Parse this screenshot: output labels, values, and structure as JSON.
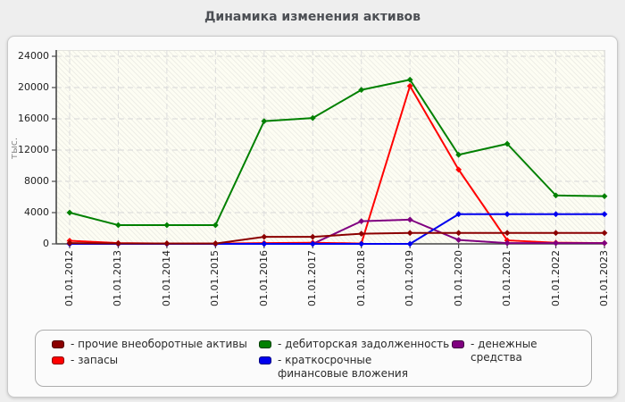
{
  "page": {
    "title": "Динамика изменения активов"
  },
  "chart_data": {
    "type": "line",
    "title": "Динамика изменения активов",
    "ylabel": "тыс.",
    "xlabel": "",
    "x_categories": [
      "01.01.2012",
      "01.01.2013",
      "01.01.2014",
      "01.01.2015",
      "01.01.2016",
      "01.01.2017",
      "01.01.2018",
      "01.01.2019",
      "01.01.2020",
      "01.01.2021",
      "01.01.2022",
      "01.01.2023"
    ],
    "y_ticks": [
      0,
      4000,
      8000,
      12000,
      16000,
      20000,
      24000
    ],
    "ylim": [
      0,
      24000
    ],
    "grid": true,
    "legend_position": "bottom",
    "series": [
      {
        "name": "прочие внеоборотные активы",
        "color": "#8b0000",
        "values": [
          100,
          50,
          50,
          50,
          900,
          900,
          1300,
          1400,
          1400,
          1400,
          1400,
          1400
        ]
      },
      {
        "name": "запасы",
        "color": "#ff0000",
        "values": [
          400,
          100,
          50,
          50,
          100,
          150,
          50,
          20200,
          9500,
          450,
          150,
          100
        ]
      },
      {
        "name": "дебиторская задолженность",
        "color": "#008000",
        "values": [
          4000,
          2400,
          2400,
          2400,
          15700,
          16100,
          19700,
          21000,
          11400,
          12800,
          6200,
          6100
        ]
      },
      {
        "name": "краткосрочные финансовые вложения",
        "color": "#0000ee",
        "values": [
          0,
          0,
          0,
          0,
          0,
          0,
          0,
          0,
          3800,
          3800,
          3800,
          3800
        ]
      },
      {
        "name": "денежные средства",
        "color": "#800080",
        "values": [
          0,
          0,
          0,
          0,
          0,
          0,
          2900,
          3100,
          500,
          100,
          100,
          100
        ]
      }
    ]
  },
  "legend": {
    "items": [
      {
        "label": "- прочие внеоборотные активы",
        "color": "#8b0000",
        "border": "#4d0000"
      },
      {
        "label": "- запасы",
        "color": "#ff0000",
        "border": "#8b0000"
      },
      {
        "label": "- дебиторская задолженность",
        "color": "#008000",
        "border": "#003c00"
      },
      {
        "label": "- краткосрочные финансовые вложения",
        "color": "#0000ee",
        "border": "#000080"
      },
      {
        "label": "- денежные средства",
        "color": "#800080",
        "border": "#3d003d"
      }
    ]
  }
}
